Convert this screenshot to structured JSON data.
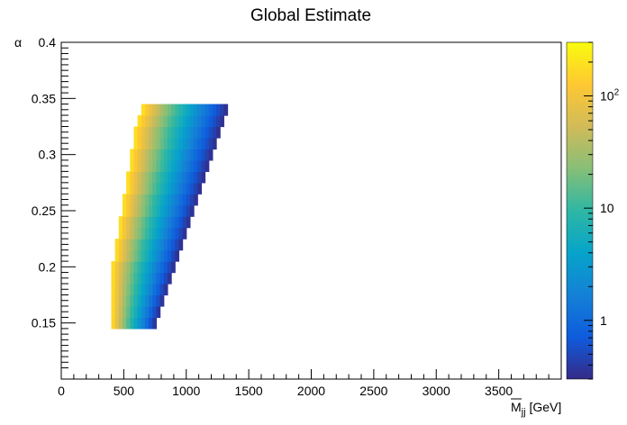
{
  "chart_data": {
    "type": "heatmap",
    "title": "Global Estimate",
    "xlabel": "M",
    "xlabel_sub": "jj",
    "xlabel_unit": "[GeV]",
    "ylabel": "α",
    "xlim": [
      0,
      4000
    ],
    "ylim": [
      0.1,
      0.4
    ],
    "x_ticks": [
      0,
      500,
      1000,
      1500,
      2000,
      2500,
      3000,
      3500
    ],
    "x_tick_labels": [
      "0",
      "500",
      "1000",
      "1500",
      "2000",
      "2500",
      "3000",
      "3500"
    ],
    "y_ticks": [
      0.15,
      0.2,
      0.25,
      0.3,
      0.35,
      0.4
    ],
    "y_tick_labels": [
      "0.15",
      "0.2",
      "0.25",
      "0.3",
      "0.35",
      "0.4"
    ],
    "z_scale": "log",
    "z_range": [
      0.3,
      300
    ],
    "colorbar_ticks": [
      1,
      10,
      100
    ],
    "colorbar_tick_labels": [
      "1",
      "10",
      "10^2"
    ],
    "colormap": [
      "#352a87",
      "#0f5cdd",
      "#1481d6",
      "#06a4ca",
      "#2eb7a4",
      "#87bf77",
      "#d1bb59",
      "#fec832",
      "#f9fb0e"
    ],
    "alpha_bin_width": 0.01,
    "mjj_bin_width": 30,
    "rows": [
      {
        "alpha": 0.15,
        "mjj_min": 400,
        "mjj_max": 760
      },
      {
        "alpha": 0.16,
        "mjj_min": 400,
        "mjj_max": 790
      },
      {
        "alpha": 0.17,
        "mjj_min": 400,
        "mjj_max": 820
      },
      {
        "alpha": 0.18,
        "mjj_min": 400,
        "mjj_max": 850
      },
      {
        "alpha": 0.19,
        "mjj_min": 400,
        "mjj_max": 880
      },
      {
        "alpha": 0.2,
        "mjj_min": 400,
        "mjj_max": 910
      },
      {
        "alpha": 0.21,
        "mjj_min": 430,
        "mjj_max": 940
      },
      {
        "alpha": 0.22,
        "mjj_min": 430,
        "mjj_max": 970
      },
      {
        "alpha": 0.23,
        "mjj_min": 460,
        "mjj_max": 1000
      },
      {
        "alpha": 0.24,
        "mjj_min": 460,
        "mjj_max": 1030
      },
      {
        "alpha": 0.25,
        "mjj_min": 490,
        "mjj_max": 1060
      },
      {
        "alpha": 0.26,
        "mjj_min": 490,
        "mjj_max": 1090
      },
      {
        "alpha": 0.27,
        "mjj_min": 520,
        "mjj_max": 1120
      },
      {
        "alpha": 0.28,
        "mjj_min": 520,
        "mjj_max": 1150
      },
      {
        "alpha": 0.29,
        "mjj_min": 550,
        "mjj_max": 1180
      },
      {
        "alpha": 0.3,
        "mjj_min": 550,
        "mjj_max": 1210
      },
      {
        "alpha": 0.31,
        "mjj_min": 580,
        "mjj_max": 1240
      },
      {
        "alpha": 0.32,
        "mjj_min": 580,
        "mjj_max": 1270
      },
      {
        "alpha": 0.33,
        "mjj_min": 610,
        "mjj_max": 1300
      },
      {
        "alpha": 0.34,
        "mjj_min": 640,
        "mjj_max": 1330
      }
    ]
  }
}
